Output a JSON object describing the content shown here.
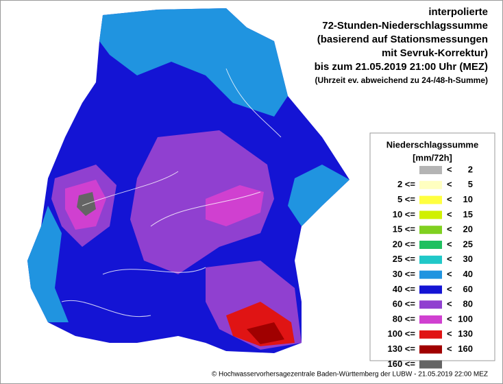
{
  "header": {
    "title_lines": [
      "interpolierte",
      "72-Stunden-Niederschlagssumme",
      "(basierend auf Stationsmessungen",
      "mit Sevruk-Korrektur)",
      "bis zum 21.05.2019 21:00 Uhr (MEZ)"
    ],
    "note": "(Uhrzeit ev. abweichend zu 24-/48-h-Summe)"
  },
  "legend": {
    "title": "Niederschlagssumme",
    "unit": "[mm/72h]",
    "rows": [
      {
        "op": "<",
        "upper": "2",
        "color": "#b4b4b4"
      },
      {
        "lower": "2 <=",
        "op": "<",
        "upper": "5",
        "color": "#ffffc0"
      },
      {
        "lower": "5 <=",
        "op": "<",
        "upper": "10",
        "color": "#ffff40"
      },
      {
        "lower": "10 <=",
        "op": "<",
        "upper": "15",
        "color": "#d0f000"
      },
      {
        "lower": "15 <=",
        "op": "<",
        "upper": "20",
        "color": "#80d020"
      },
      {
        "lower": "20 <=",
        "op": "<",
        "upper": "25",
        "color": "#20c060"
      },
      {
        "lower": "25 <=",
        "op": "<",
        "upper": "30",
        "color": "#20c8c8"
      },
      {
        "lower": "30 <=",
        "op": "<",
        "upper": "40",
        "color": "#2094e0"
      },
      {
        "lower": "40 <=",
        "op": "<",
        "upper": "60",
        "color": "#1414d4"
      },
      {
        "lower": "60 <=",
        "op": "<",
        "upper": "80",
        "color": "#9040d0"
      },
      {
        "lower": "80 <=",
        "op": "<",
        "upper": "100",
        "color": "#d040d0"
      },
      {
        "lower": "100 <=",
        "op": "<",
        "upper": "130",
        "color": "#e01414"
      },
      {
        "lower": "130 <=",
        "op": "<",
        "upper": "160",
        "color": "#a00000"
      },
      {
        "lower": "160 <=",
        "color": "#646464"
      }
    ]
  },
  "footer": "© Hochwasservorhersagezentrale Baden-Württemberg der LUBW - 21.05.2019 22:00 MEZ"
}
